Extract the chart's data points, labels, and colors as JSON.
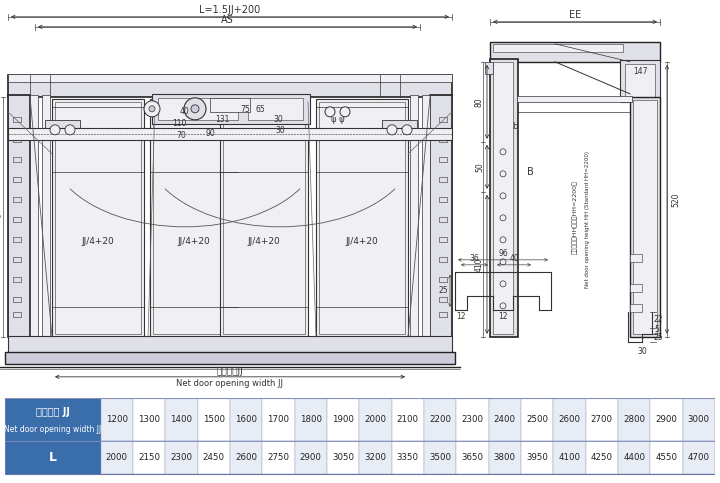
{
  "bg_color": "#ffffff",
  "table_header_bg": "#3a6eab",
  "table_row2_bg": "#3a6eab",
  "table_alt_bg": "#e8edf5",
  "table_border_color": "#aaaacc",
  "table_text_color_header": "#ffffff",
  "table_text_color_data": "#222222",
  "row1_label_line1": "净开门宽 JJ",
  "row1_label_line2": "Net door opening width JJ",
  "row1_values": [
    "1200",
    "1300",
    "1400",
    "1500",
    "1600",
    "1700",
    "1800",
    "1900",
    "2000",
    "2100",
    "2200",
    "2300",
    "2400",
    "2500",
    "2600",
    "2700",
    "2800",
    "2900",
    "3000"
  ],
  "row2_label": "L",
  "row2_values": [
    "2000",
    "2150",
    "2300",
    "2450",
    "2600",
    "2750",
    "2900",
    "3050",
    "3200",
    "3350",
    "3500",
    "3650",
    "3800",
    "3950",
    "4100",
    "4250",
    "4400",
    "4550",
    "4700"
  ],
  "lc": "#333333",
  "lc_dim": "#444444",
  "lc_thick": "#222222",
  "fill_light": "#f0f0f4",
  "fill_med": "#e0e0e8",
  "fill_dark": "#ccccda"
}
